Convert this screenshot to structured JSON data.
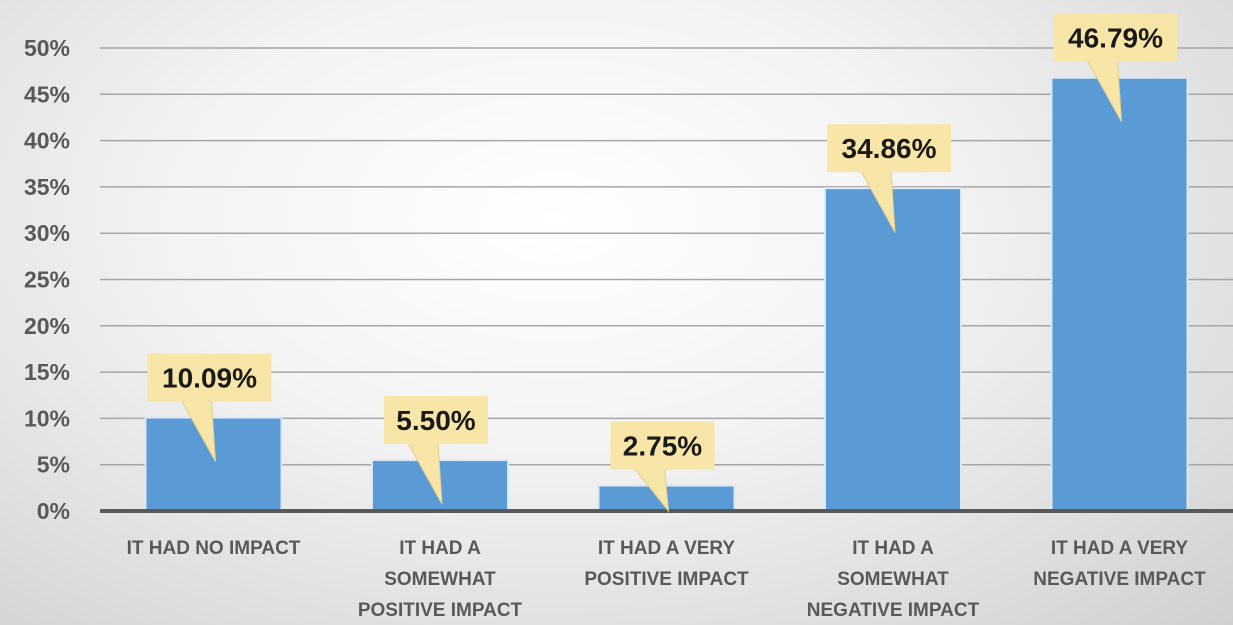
{
  "chart_data": {
    "type": "bar",
    "categories": [
      [
        "IT HAD NO IMPACT"
      ],
      [
        "IT HAD A",
        "SOMEWHAT",
        "POSITIVE IMPACT"
      ],
      [
        "IT HAD A VERY",
        "POSITIVE IMPACT"
      ],
      [
        "IT HAD A",
        "SOMEWHAT",
        "NEGATIVE IMPACT"
      ],
      [
        "IT HAD A VERY",
        "NEGATIVE IMPACT"
      ]
    ],
    "values": [
      10.09,
      5.5,
      2.75,
      34.86,
      46.79
    ],
    "data_labels": [
      "10.09%",
      "5.50%",
      "2.75%",
      "34.86%",
      "46.79%"
    ],
    "ylim": [
      0,
      50
    ],
    "yticks": [
      "0%",
      "5%",
      "10%",
      "15%",
      "20%",
      "25%",
      "30%",
      "35%",
      "40%",
      "45%",
      "50%"
    ],
    "grid": true,
    "legend": "none",
    "title": "",
    "xlabel": "",
    "ylabel": "",
    "colors": {
      "bar": "#5b9bd5",
      "bar_border": "#dbe9f6",
      "label_bg": "#f8e5a8",
      "grid": "#a6a6a6",
      "axis": "#595959"
    }
  }
}
